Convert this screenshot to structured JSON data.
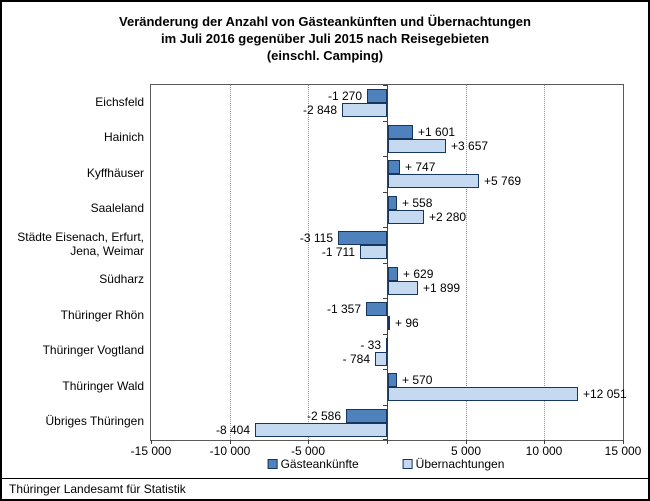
{
  "page": {
    "footer_source": "Thüringer Landesamt für Statistik",
    "background_color": "#ffffff",
    "border_color": "#000000"
  },
  "chart_data": {
    "type": "bar",
    "orientation": "horizontal",
    "title_lines": [
      "Veränderung der Anzahl von Gästeankünften und Übernachtungen",
      "im Juli 2016 gegenüber Juli 2015 nach Reisegebieten",
      "(einschl. Camping)"
    ],
    "categories": [
      "Eichsfeld",
      "Hainich",
      "Kyffhäuser",
      "Saaleland",
      "Städte Eisenach, Erfurt,\nJena, Weimar",
      "Südharz",
      "Thüringer Rhön",
      "Thüringer Vogtland",
      "Thüringer Wald",
      "Übriges Thüringen"
    ],
    "series": [
      {
        "name": "Gästeankünfte",
        "color": "#4f81bd",
        "border_color": "#17365d",
        "values": [
          -1270,
          1601,
          747,
          558,
          -3115,
          629,
          -1357,
          -33,
          570,
          -2586
        ],
        "labels": [
          "-1 270",
          "+1 601",
          "+ 747",
          "+ 558",
          "-3 115",
          "+ 629",
          "-1 357",
          "- 33",
          "+ 570",
          "-2 586"
        ]
      },
      {
        "name": "Übernachtungen",
        "color": "#c5d9f1",
        "border_color": "#17365d",
        "values": [
          -2848,
          3657,
          5769,
          2280,
          -1711,
          1899,
          96,
          -784,
          12051,
          -8404
        ],
        "labels": [
          "-2 848",
          "+3 657",
          "+5 769",
          "+2 280",
          "-1 711",
          "+1 899",
          "+ 96",
          "- 784",
          "+12 051",
          "-8 404"
        ]
      }
    ],
    "xlim": [
      -15000,
      15000
    ],
    "x_ticks": [
      {
        "value": -15000,
        "label": "-15 000"
      },
      {
        "value": -10000,
        "label": "-10 000"
      },
      {
        "value": -5000,
        "label": "-5 000"
      },
      {
        "value": 0,
        "label": ""
      },
      {
        "value": 5000,
        "label": "5 000"
      },
      {
        "value": 10000,
        "label": "10 000"
      },
      {
        "value": 15000,
        "label": "15 000"
      }
    ],
    "grid_values": [
      -10000,
      -5000,
      5000,
      10000
    ],
    "grid_style": "dotted",
    "legend_position": "bottom-center"
  }
}
